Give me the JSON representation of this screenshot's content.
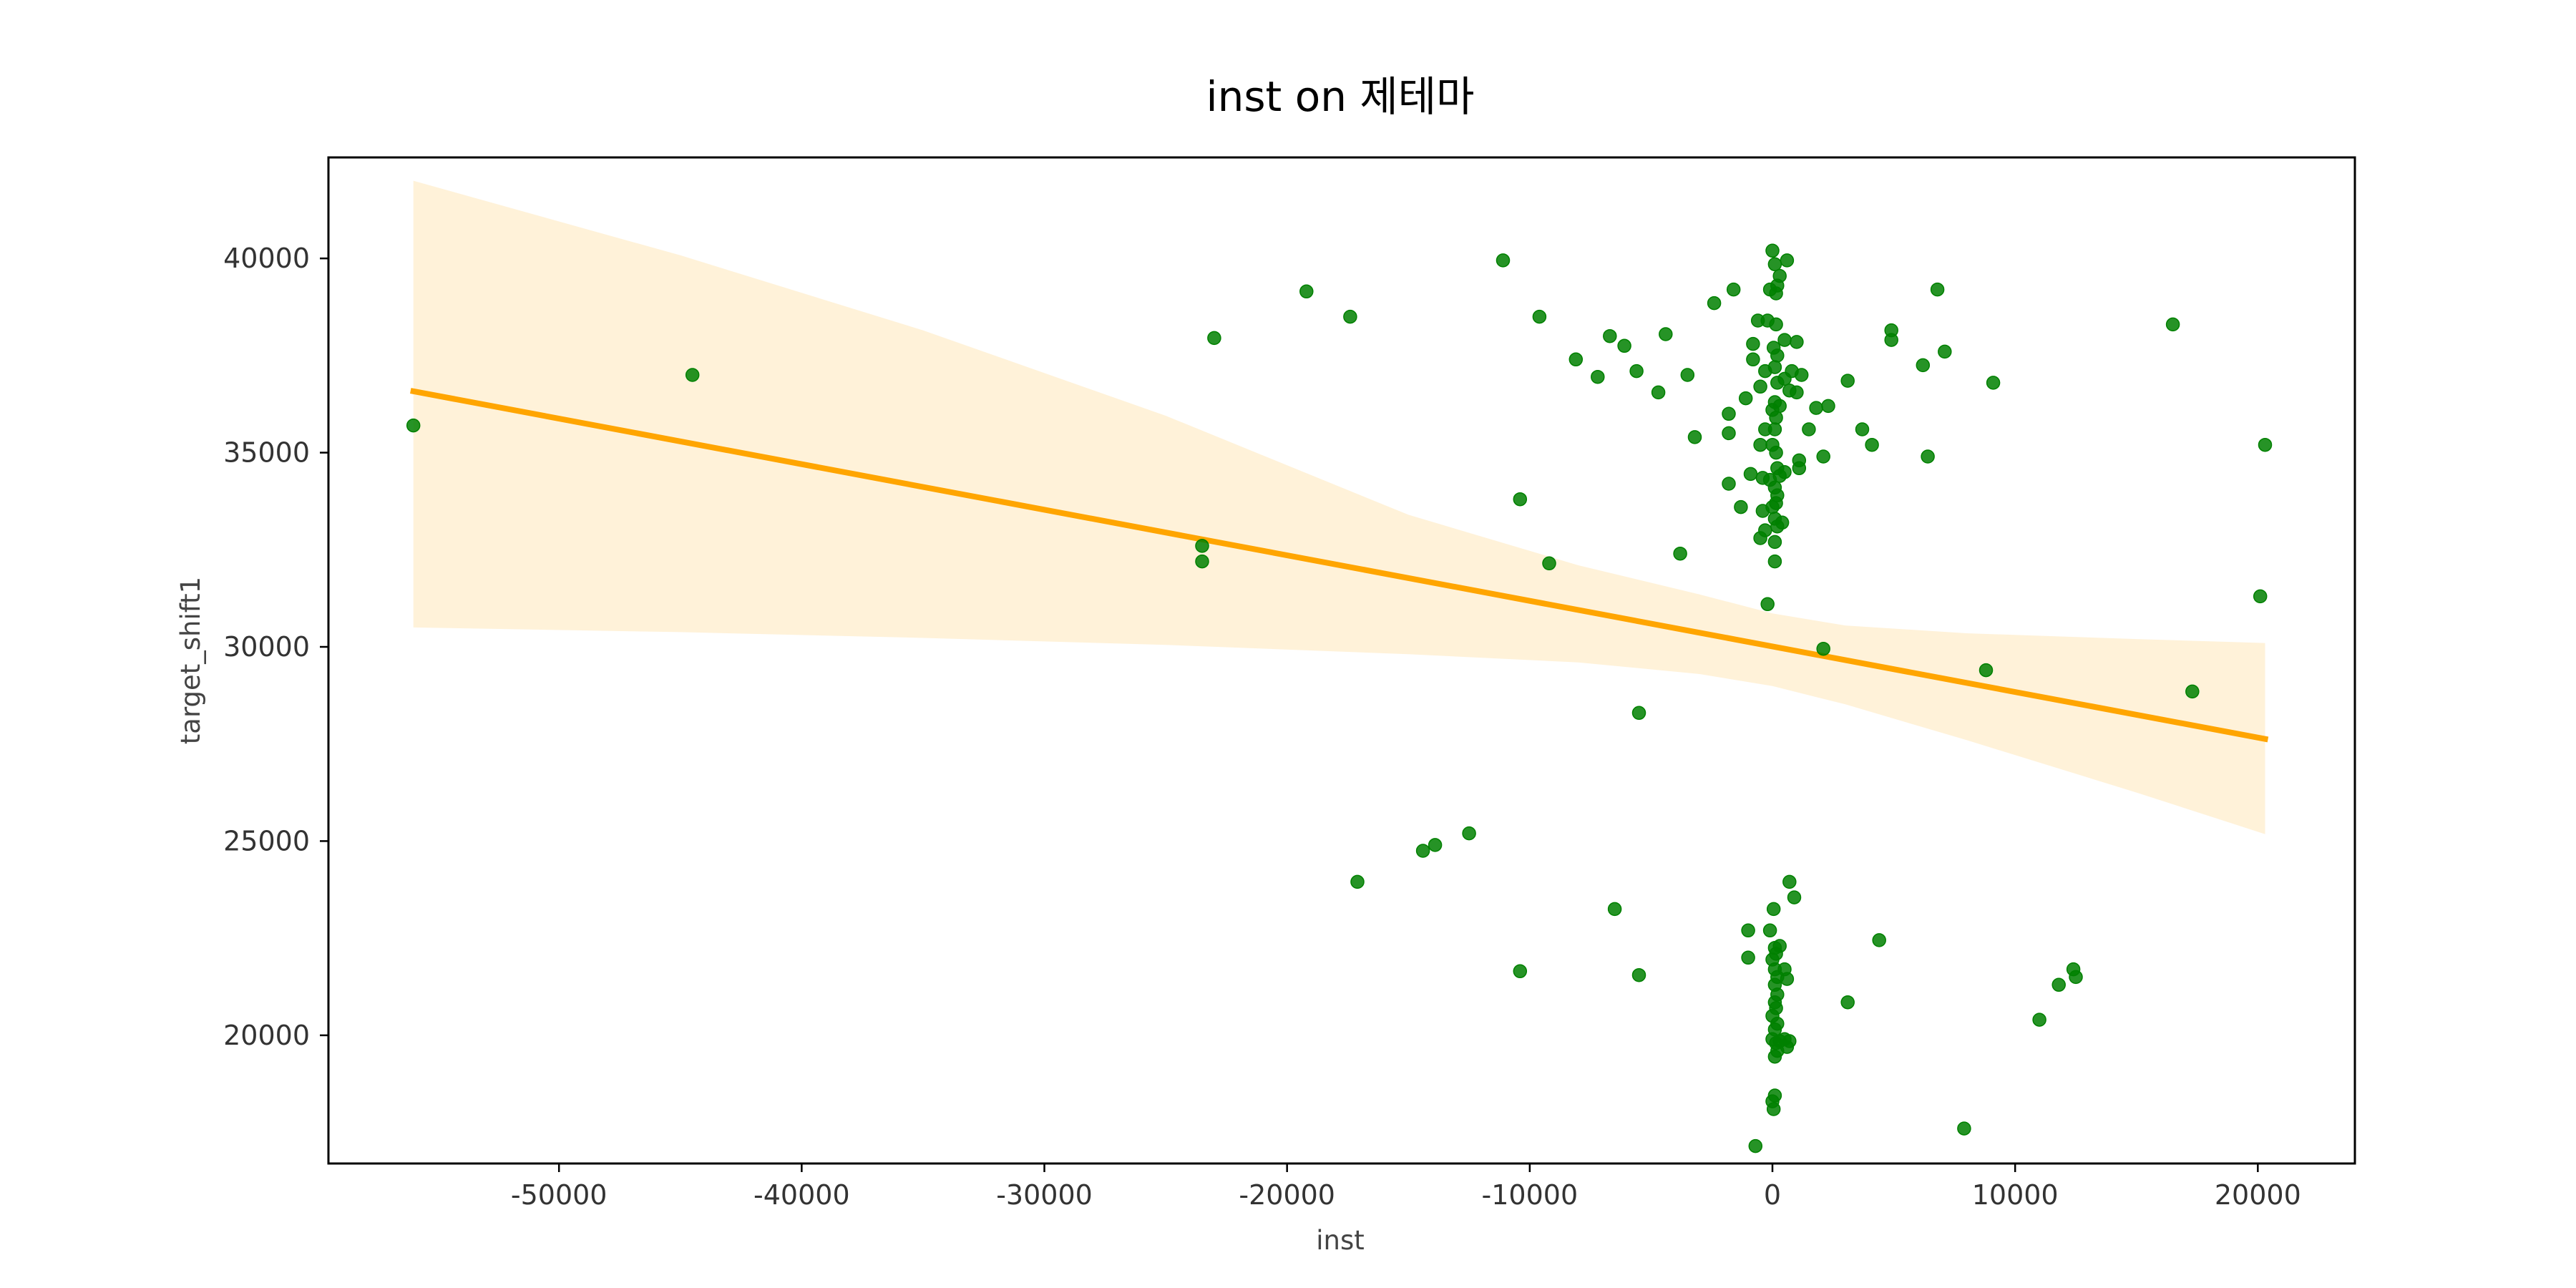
{
  "chart_data": {
    "type": "scatter",
    "title": "inst on 제테마",
    "xlabel": "inst",
    "ylabel": "target_shift1",
    "xlim": [
      -59500,
      24000
    ],
    "ylim": [
      16700,
      42600
    ],
    "xticks": [
      -50000,
      -40000,
      -30000,
      -20000,
      -10000,
      0,
      10000,
      20000
    ],
    "xtick_labels": [
      "-50000",
      "-40000",
      "-30000",
      "-20000",
      "-10000",
      "0",
      "10000",
      "20000"
    ],
    "yticks": [
      20000,
      25000,
      30000,
      35000,
      40000
    ],
    "ytick_labels": [
      "20000",
      "25000",
      "30000",
      "35000",
      "40000"
    ],
    "grid": false,
    "legend": "none",
    "colors": {
      "points": "#008000",
      "regression_line": "#ffa500",
      "confidence_band": "#ffa500"
    },
    "series": [
      {
        "kind": "scatter",
        "points": [
          [
            -56000,
            35700
          ],
          [
            -44500,
            37000
          ],
          [
            -23500,
            32600
          ],
          [
            -23500,
            32200
          ],
          [
            -23000,
            37950
          ],
          [
            -19200,
            39150
          ],
          [
            -17400,
            38500
          ],
          [
            -17100,
            23950
          ],
          [
            -14400,
            24750
          ],
          [
            -13900,
            24900
          ],
          [
            -12500,
            25200
          ],
          [
            -11100,
            39950
          ],
          [
            -10400,
            33800
          ],
          [
            -10400,
            21650
          ],
          [
            -9600,
            38500
          ],
          [
            -9200,
            32150
          ],
          [
            -8100,
            37400
          ],
          [
            -7200,
            36950
          ],
          [
            -6700,
            38000
          ],
          [
            -6500,
            23250
          ],
          [
            -6100,
            37750
          ],
          [
            -5600,
            37100
          ],
          [
            -5500,
            28300
          ],
          [
            -5500,
            21550
          ],
          [
            -4700,
            36550
          ],
          [
            -4400,
            38050
          ],
          [
            -3800,
            32400
          ],
          [
            -3500,
            37000
          ],
          [
            -3200,
            35400
          ],
          [
            -2400,
            38850
          ],
          [
            -1800,
            36000
          ],
          [
            -1800,
            35500
          ],
          [
            -1800,
            34200
          ],
          [
            -1600,
            39200
          ],
          [
            -1300,
            33600
          ],
          [
            -1100,
            36400
          ],
          [
            -1000,
            22700
          ],
          [
            -1000,
            22000
          ],
          [
            -900,
            34450
          ],
          [
            -800,
            37800
          ],
          [
            -800,
            37400
          ],
          [
            -700,
            17150
          ],
          [
            -600,
            38400
          ],
          [
            -500,
            36700
          ],
          [
            -500,
            35200
          ],
          [
            -500,
            32800
          ],
          [
            -400,
            34350
          ],
          [
            -400,
            33500
          ],
          [
            -300,
            37100
          ],
          [
            -300,
            35600
          ],
          [
            -300,
            33000
          ],
          [
            -200,
            38400
          ],
          [
            -200,
            31100
          ],
          [
            -100,
            39200
          ],
          [
            -100,
            34300
          ],
          [
            -100,
            22700
          ],
          [
            0,
            40200
          ],
          [
            0,
            36100
          ],
          [
            0,
            35200
          ],
          [
            0,
            33600
          ],
          [
            0,
            21950
          ],
          [
            0,
            20500
          ],
          [
            0,
            19900
          ],
          [
            0,
            18300
          ],
          [
            50,
            37700
          ],
          [
            50,
            23250
          ],
          [
            50,
            18100
          ],
          [
            100,
            39850
          ],
          [
            100,
            37200
          ],
          [
            100,
            36300
          ],
          [
            100,
            35600
          ],
          [
            100,
            34100
          ],
          [
            100,
            33300
          ],
          [
            100,
            32700
          ],
          [
            100,
            32200
          ],
          [
            100,
            22250
          ],
          [
            100,
            21700
          ],
          [
            100,
            21300
          ],
          [
            100,
            20850
          ],
          [
            100,
            20150
          ],
          [
            100,
            19450
          ],
          [
            100,
            18450
          ],
          [
            150,
            39100
          ],
          [
            150,
            38300
          ],
          [
            150,
            35900
          ],
          [
            150,
            35000
          ],
          [
            150,
            33700
          ],
          [
            150,
            22100
          ],
          [
            150,
            20700
          ],
          [
            150,
            19800
          ],
          [
            200,
            39300
          ],
          [
            200,
            37500
          ],
          [
            200,
            36800
          ],
          [
            200,
            34600
          ],
          [
            200,
            33900
          ],
          [
            200,
            33100
          ],
          [
            200,
            21500
          ],
          [
            200,
            21050
          ],
          [
            200,
            20300
          ],
          [
            200,
            19600
          ],
          [
            300,
            39550
          ],
          [
            300,
            36200
          ],
          [
            300,
            34400
          ],
          [
            300,
            22300
          ],
          [
            300,
            19850
          ],
          [
            400,
            33200
          ],
          [
            500,
            37900
          ],
          [
            500,
            36900
          ],
          [
            500,
            34500
          ],
          [
            500,
            21700
          ],
          [
            500,
            19900
          ],
          [
            600,
            39950
          ],
          [
            600,
            21450
          ],
          [
            600,
            19700
          ],
          [
            700,
            36600
          ],
          [
            700,
            23950
          ],
          [
            700,
            19850
          ],
          [
            800,
            37100
          ],
          [
            900,
            23550
          ],
          [
            1000,
            37850
          ],
          [
            1000,
            36550
          ],
          [
            1100,
            34800
          ],
          [
            1100,
            34600
          ],
          [
            1200,
            37000
          ],
          [
            1500,
            35600
          ],
          [
            1800,
            36150
          ],
          [
            2100,
            34900
          ],
          [
            2100,
            29950
          ],
          [
            2300,
            36200
          ],
          [
            3100,
            36850
          ],
          [
            3100,
            20850
          ],
          [
            3700,
            35600
          ],
          [
            4100,
            35200
          ],
          [
            4400,
            22450
          ],
          [
            4900,
            38150
          ],
          [
            4900,
            37900
          ],
          [
            6200,
            37250
          ],
          [
            6400,
            34900
          ],
          [
            6800,
            39200
          ],
          [
            7100,
            37600
          ],
          [
            7900,
            17600
          ],
          [
            8800,
            29400
          ],
          [
            9100,
            36800
          ],
          [
            11000,
            20400
          ],
          [
            11800,
            21300
          ],
          [
            12400,
            21700
          ],
          [
            12500,
            21500
          ],
          [
            16500,
            38300
          ],
          [
            17300,
            28850
          ],
          [
            20100,
            31300
          ],
          [
            20300,
            35200
          ]
        ]
      },
      {
        "kind": "regression_line",
        "x": [
          -56000,
          20300
        ],
        "y": [
          36580,
          27630
        ]
      },
      {
        "kind": "confidence_band",
        "x": [
          -56000,
          -45000,
          -35000,
          -25000,
          -15000,
          -8000,
          -3000,
          0,
          3000,
          8000,
          15000,
          20300
        ],
        "upper": [
          42000,
          40080,
          38150,
          35950,
          33400,
          32100,
          31350,
          30860,
          30550,
          30350,
          30200,
          30100
        ],
        "lower": [
          30500,
          30380,
          30230,
          30050,
          29810,
          29600,
          29300,
          28990,
          28520,
          27600,
          26250,
          25180
        ]
      }
    ]
  }
}
